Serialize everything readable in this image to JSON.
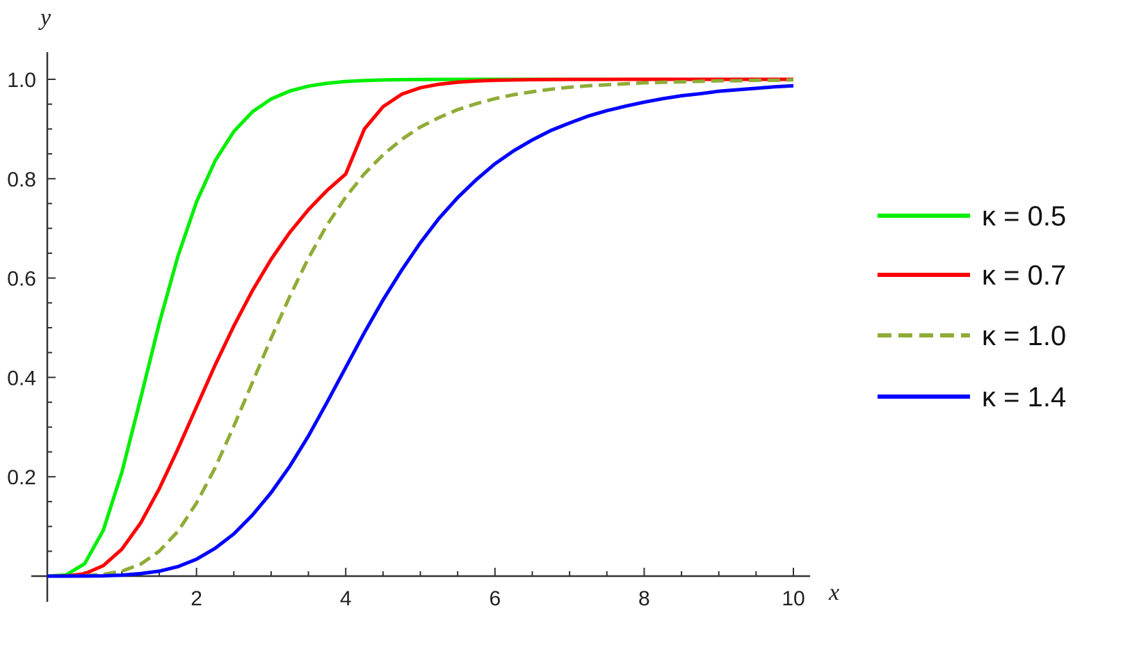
{
  "chart_data": {
    "type": "line",
    "xlabel": "x",
    "ylabel": "y",
    "xlim": [
      0,
      10
    ],
    "ylim": [
      0,
      1.05
    ],
    "x_ticks": [
      2,
      4,
      6,
      8,
      10
    ],
    "x_tick_labels": [
      "2",
      "4",
      "6",
      "8",
      "10"
    ],
    "y_ticks": [
      0.2,
      0.4,
      0.6,
      0.8,
      1.0
    ],
    "y_tick_labels": [
      "0.2",
      "0.4",
      "0.6",
      "0.8",
      "1.0"
    ],
    "grid": false,
    "legend_position": "right",
    "x": [
      0,
      0.25,
      0.5,
      0.75,
      1,
      1.25,
      1.5,
      1.75,
      2,
      2.25,
      2.5,
      2.75,
      3,
      3.25,
      3.5,
      3.75,
      4,
      4.25,
      4.5,
      4.75,
      5,
      5.25,
      5.5,
      5.75,
      6,
      6.25,
      6.5,
      6.75,
      7,
      7.25,
      7.5,
      7.75,
      8,
      8.25,
      8.5,
      8.75,
      9,
      9.25,
      9.5,
      9.75,
      10
    ],
    "series": [
      {
        "name": "κ = 0.5",
        "color": "#00ee00",
        "dashed": false,
        "values": [
          0,
          0.0023,
          0.0249,
          0.092,
          0.2093,
          0.357,
          0.5082,
          0.6435,
          0.7532,
          0.8362,
          0.8951,
          0.9347,
          0.9604,
          0.9765,
          0.9863,
          0.9922,
          0.9956,
          0.9976,
          0.9987,
          0.9993,
          0.9996,
          0.9998,
          0.9999,
          1.0,
          1.0,
          1.0,
          1.0,
          1.0,
          1.0,
          1.0,
          1.0,
          1.0,
          1.0,
          1.0,
          1.0,
          1.0,
          1.0,
          1.0,
          1.0,
          1.0,
          1.0
        ]
      },
      {
        "name": "κ = 0.7",
        "color": "#ff0000",
        "dashed": false,
        "values": [
          0,
          0.0003,
          0.0048,
          0.021,
          0.0543,
          0.1066,
          0.1755,
          0.2557,
          0.3408,
          0.4249,
          0.5037,
          0.575,
          0.6377,
          0.6917,
          0.7376,
          0.7765,
          0.8094,
          0.9,
          0.945,
          0.97,
          0.983,
          0.99,
          0.9942,
          0.9966,
          0.998,
          0.9988,
          0.9993,
          0.9996,
          0.9998,
          0.9999,
          0.9999,
          1.0,
          1.0,
          1.0,
          1.0,
          1.0,
          1.0,
          1.0,
          1.0,
          1.0,
          1.0
        ]
      },
      {
        "name": "κ = 1.0",
        "color": "#8fac37",
        "dashed": true,
        "values": [
          0,
          0.0001,
          0.0008,
          0.0036,
          0.01,
          0.024,
          0.05,
          0.09,
          0.147,
          0.218,
          0.302,
          0.39,
          0.479,
          0.563,
          0.64,
          0.707,
          0.763,
          0.81,
          0.848,
          0.879,
          0.904,
          0.923,
          0.939,
          0.951,
          0.961,
          0.969,
          0.975,
          0.98,
          0.984,
          0.987,
          0.989,
          0.991,
          0.993,
          0.994,
          0.995,
          0.996,
          0.997,
          0.997,
          0.998,
          0.998,
          0.999
        ]
      },
      {
        "name": "κ = 1.4",
        "color": "#0000ff",
        "dashed": false,
        "values": [
          0,
          0.0,
          0.0001,
          0.0005,
          0.002,
          0.005,
          0.01,
          0.019,
          0.034,
          0.056,
          0.085,
          0.123,
          0.168,
          0.221,
          0.282,
          0.35,
          0.42,
          0.49,
          0.556,
          0.616,
          0.671,
          0.72,
          0.762,
          0.798,
          0.83,
          0.856,
          0.878,
          0.897,
          0.912,
          0.926,
          0.937,
          0.946,
          0.954,
          0.961,
          0.967,
          0.971,
          0.976,
          0.979,
          0.982,
          0.985,
          0.987
        ]
      }
    ]
  }
}
